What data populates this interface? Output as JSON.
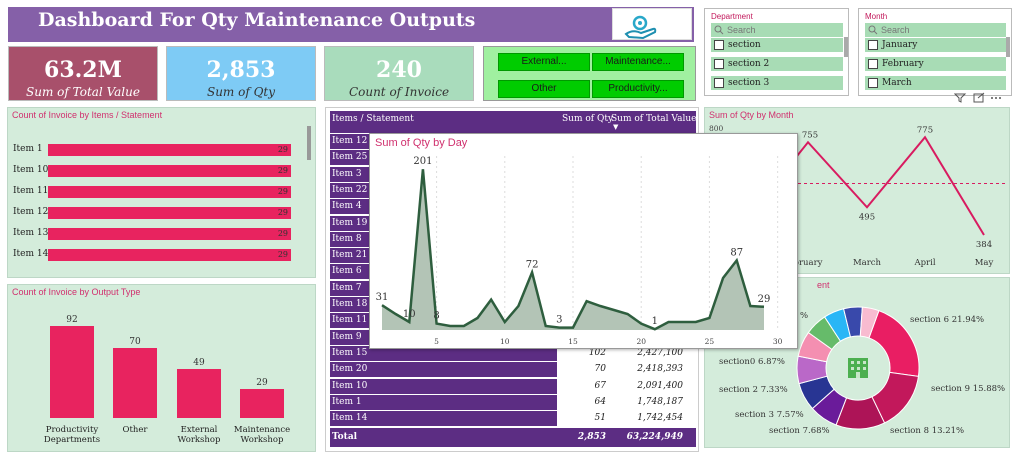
{
  "header": {
    "title": "Dashboard For Qty Maintenance Outputs",
    "logo_icon": "hand-gear-icon"
  },
  "kpis": [
    {
      "value": "63.2M",
      "label": "Sum of Total Value",
      "color": "#a8506b"
    },
    {
      "value": "2,853",
      "label": "Sum of Qty",
      "color": "#7ecbf5"
    },
    {
      "value": "240",
      "label": "Count of Invoice",
      "color": "#a9dcbc"
    }
  ],
  "nav_buttons": [
    "External...",
    "Maintenance...",
    "Other",
    "Productivity..."
  ],
  "department_slicer": {
    "title": "Department",
    "search_placeholder": "Search",
    "items": [
      "section",
      "section 2",
      "section 3"
    ]
  },
  "month_slicer": {
    "title": "Month",
    "search_placeholder": "Search",
    "items": [
      "January",
      "February",
      "March"
    ]
  },
  "invoice_by_items": {
    "title": "Count of Invoice by Items / Statement",
    "chart_data": {
      "type": "bar",
      "orientation": "horizontal",
      "categories": [
        "Item 1",
        "Item 10",
        "Item 11",
        "Item 12",
        "Item 13",
        "Item 14"
      ],
      "values": [
        29,
        29,
        29,
        29,
        29,
        29
      ]
    }
  },
  "invoice_by_output": {
    "title": "Count of Invoice by Output Type",
    "chart_data": {
      "type": "bar",
      "categories": [
        "Productivity Departments",
        "Other",
        "External Workshop",
        "Maintenance Workshop"
      ],
      "cat_lines": [
        [
          "Productivity",
          "Departments"
        ],
        [
          "Other"
        ],
        [
          "External",
          "Workshop"
        ],
        [
          "Maintenance",
          "Workshop"
        ]
      ],
      "values": [
        92,
        70,
        49,
        29
      ]
    }
  },
  "table": {
    "headers": [
      "Items / Statement",
      "Sum of Qty",
      "Sum of Total Value"
    ],
    "rows": [
      {
        "item": "Item 12",
        "qty": "",
        "total": ""
      },
      {
        "item": "Item 25",
        "qty": "",
        "total": ""
      },
      {
        "item": "Item 3",
        "qty": "",
        "total": ""
      },
      {
        "item": "Item 22",
        "qty": "",
        "total": ""
      },
      {
        "item": "Item 4",
        "qty": "",
        "total": ""
      },
      {
        "item": "Item 19",
        "qty": "",
        "total": ""
      },
      {
        "item": "Item 8",
        "qty": "",
        "total": ""
      },
      {
        "item": "Item 21",
        "qty": "",
        "total": ""
      },
      {
        "item": "Item 6",
        "qty": "",
        "total": ""
      },
      {
        "item": "Item 7",
        "qty": "",
        "total": ""
      },
      {
        "item": "Item 18",
        "qty": "",
        "total": ""
      },
      {
        "item": "Item 11",
        "qty": "",
        "total": ""
      },
      {
        "item": "Item 9",
        "qty": "",
        "total": ""
      },
      {
        "item": "Item 15",
        "qty": "102",
        "total": "2,427,100"
      },
      {
        "item": "Item 20",
        "qty": "70",
        "total": "2,418,393"
      },
      {
        "item": "Item 10",
        "qty": "67",
        "total": "2,091,400"
      },
      {
        "item": "Item 1",
        "qty": "64",
        "total": "1,748,187"
      },
      {
        "item": "Item 14",
        "qty": "51",
        "total": "1,742,454"
      }
    ],
    "total_label": "Total",
    "total_qty": "2,853",
    "total_value": "63,224,949"
  },
  "qty_by_day": {
    "title": "Sum of Qty by Day",
    "chart_data": {
      "type": "area",
      "x": [
        1,
        2,
        3,
        4,
        5,
        6,
        7,
        8,
        9,
        10,
        11,
        12,
        13,
        14,
        15,
        16,
        17,
        18,
        19,
        20,
        21,
        22,
        23,
        24,
        25,
        26,
        27,
        28,
        29
      ],
      "y": [
        31,
        20,
        10,
        201,
        8,
        5,
        5,
        15,
        38,
        10,
        30,
        72,
        5,
        3,
        3,
        36,
        30,
        25,
        20,
        8,
        1,
        10,
        10,
        10,
        15,
        65,
        87,
        30,
        29
      ],
      "labeled_points": [
        {
          "x": 1,
          "label": "31"
        },
        {
          "x": 3,
          "label": "10"
        },
        {
          "x": 4,
          "label": "201"
        },
        {
          "x": 5,
          "label": "8"
        },
        {
          "x": 12,
          "label": "72"
        },
        {
          "x": 14,
          "label": "3"
        },
        {
          "x": 21,
          "label": "1"
        },
        {
          "x": 27,
          "label": "87"
        },
        {
          "x": 29,
          "label": "29"
        }
      ],
      "xticks": [
        "5",
        "10",
        "15",
        "20",
        "25",
        "30"
      ],
      "ylim": [
        0,
        220
      ],
      "color": "#2e5e3e"
    }
  },
  "qty_by_month": {
    "title": "Sum of Qty by Month",
    "chart_data": {
      "type": "line",
      "categories": [
        "February",
        "March",
        "April",
        "May"
      ],
      "cat_labels": [
        "bruary",
        "March",
        "April",
        "May"
      ],
      "values": [
        755,
        495,
        775,
        384
      ],
      "ytick": "800",
      "reference_line": 590,
      "color": "#d81b60"
    }
  },
  "donut": {
    "title_partial": "ent",
    "center_icon": "building-icon",
    "chart_data": {
      "type": "pie",
      "slices": [
        {
          "label": "section 6 21.94%",
          "value": 21.94,
          "color": "#e91e63"
        },
        {
          "label": "section 9 15.88%",
          "value": 15.88,
          "color": "#c2185b"
        },
        {
          "label": "section 8 13.21%",
          "value": 13.21,
          "color": "#ad1457"
        },
        {
          "label": "section 7.68%",
          "value": 7.68,
          "color": "#6a1b9a"
        },
        {
          "label": "section 3 7.57%",
          "value": 7.57,
          "color": "#283593"
        },
        {
          "label": "section 2 7.33%",
          "value": 7.33,
          "color": "#ba68c8"
        },
        {
          "label": "section0 6.87%",
          "value": 6.87,
          "color": "#f48fb1"
        },
        {
          "label": "",
          "value": 6.0,
          "color": "#66bb6a"
        },
        {
          "label": "",
          "value": 5.5,
          "color": "#29b6f6"
        },
        {
          "label": "",
          "value": 5.0,
          "color": "#3949ab"
        },
        {
          "label": "",
          "value": 4.5,
          "color": "#f8bbd0"
        }
      ],
      "partial_label": "%"
    }
  },
  "toolbar_icons": [
    "filter-icon",
    "focus-mode-icon",
    "more-options-icon"
  ]
}
